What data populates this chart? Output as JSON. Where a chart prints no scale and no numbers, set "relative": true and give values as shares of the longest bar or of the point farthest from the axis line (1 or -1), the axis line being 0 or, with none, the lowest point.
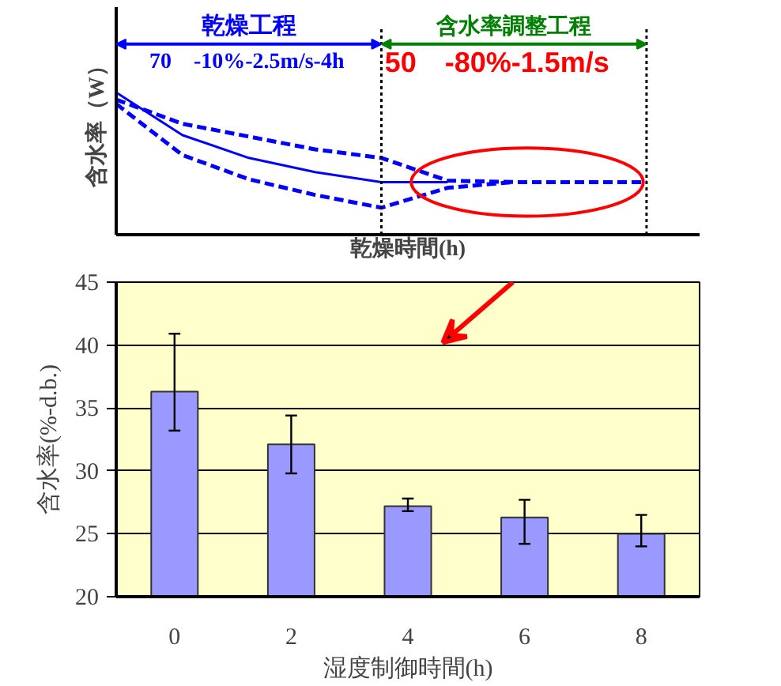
{
  "chart_data": [
    {
      "type": "line",
      "relative": true,
      "xlabel": "乾燥時間(h)",
      "ylabel": "含水率（W）",
      "categories": [
        null,
        null,
        null,
        null,
        null,
        null,
        null,
        null,
        null
      ],
      "series": [
        {
          "color": "#0000ff",
          "line_style": "solid",
          "values": [
            1.0,
            0.7,
            0.54,
            0.44,
            0.37,
            0.37,
            null,
            null,
            null
          ]
        },
        {
          "color": "#0000ff",
          "line_style": "dashed",
          "values": [
            0.95,
            0.78,
            0.69,
            0.6,
            0.54,
            0.38,
            0.37,
            0.37,
            0.37
          ]
        },
        {
          "color": "#0000ff",
          "line_style": "dashed",
          "values": [
            0.92,
            0.56,
            0.39,
            0.28,
            0.19,
            0.33,
            0.37,
            null,
            null
          ]
        }
      ],
      "annotations": [
        "乾燥工程",
        "含水率調整工程",
        "70　-10%-2.5m/s-4h",
        "50　-80%-1.5m/s"
      ],
      "grid": false
    },
    {
      "type": "bar",
      "categories": [
        "0",
        "2",
        "4",
        "6",
        "8"
      ],
      "values": [
        36.3,
        32.1,
        27.2,
        26.3,
        25.0
      ],
      "errors": [
        [
          33.2,
          40.9
        ],
        [
          29.8,
          34.4
        ],
        [
          26.8,
          27.8
        ],
        [
          24.2,
          27.7
        ],
        [
          24.0,
          26.5
        ]
      ],
      "color": "#9999ff",
      "ylim": [
        20,
        45
      ],
      "yticks": [
        20,
        25,
        30,
        35,
        40,
        45
      ],
      "grid": "y",
      "xlabel": "湿度制御時間(h)",
      "ylabel": "含水率(%-d.b.)"
    }
  ]
}
